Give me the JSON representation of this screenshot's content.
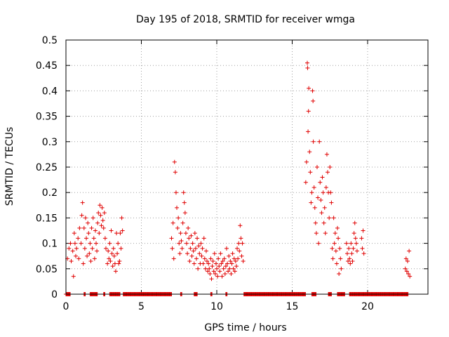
{
  "chart_data": {
    "type": "scatter",
    "title": "Day 195 of 2018, SRMTID for receiver wmga",
    "xlabel": "GPS time / hours",
    "ylabel": "SRMTID / TECUs",
    "xlim": [
      0,
      24
    ],
    "ylim": [
      0,
      0.5
    ],
    "grid": true,
    "marker": "+",
    "marker_color": "#e00000",
    "x_ticks": [
      0,
      5,
      10,
      15,
      20
    ],
    "y_ticks": [
      0,
      0.05,
      0.1,
      0.15,
      0.2,
      0.25,
      0.3,
      0.35,
      0.4,
      0.45,
      0.5
    ],
    "y_tick_labels": [
      "0",
      "0.05",
      "0.1",
      "0.15",
      "0.2",
      "0.25",
      "0.3",
      "0.35",
      "0.4",
      "0.45",
      "0.5"
    ],
    "zero_segments": [
      [
        0.0,
        0.3
      ],
      [
        1.2,
        1.3
      ],
      [
        1.6,
        2.1
      ],
      [
        2.5,
        2.6
      ],
      [
        2.9,
        3.6
      ],
      [
        3.8,
        7.0
      ],
      [
        7.6,
        7.7
      ],
      [
        8.5,
        8.7
      ],
      [
        9.6,
        9.7
      ],
      [
        10.6,
        10.7
      ],
      [
        11.8,
        15.9
      ],
      [
        16.3,
        16.6
      ],
      [
        17.4,
        17.6
      ],
      [
        18.0,
        18.5
      ],
      [
        18.8,
        22.7
      ]
    ],
    "series": [
      {
        "name": "SRMTID",
        "points": [
          [
            0.1,
            0.07
          ],
          [
            0.2,
            0.09
          ],
          [
            0.3,
            0.1
          ],
          [
            0.35,
            0.065
          ],
          [
            0.45,
            0.085
          ],
          [
            0.5,
            0.035
          ],
          [
            0.55,
            0.12
          ],
          [
            0.6,
            0.1
          ],
          [
            0.65,
            0.075
          ],
          [
            0.7,
            0.09
          ],
          [
            0.8,
            0.11
          ],
          [
            0.85,
            0.07
          ],
          [
            0.9,
            0.13
          ],
          [
            1.0,
            0.1
          ],
          [
            1.05,
            0.155
          ],
          [
            1.1,
            0.18
          ],
          [
            1.15,
            0.06
          ],
          [
            1.2,
            0.13
          ],
          [
            1.25,
            0.09
          ],
          [
            1.3,
            0.15
          ],
          [
            1.35,
            0.11
          ],
          [
            1.4,
            0.075
          ],
          [
            1.45,
            0.14
          ],
          [
            1.5,
            0.12
          ],
          [
            1.55,
            0.08
          ],
          [
            1.6,
            0.1
          ],
          [
            1.65,
            0.065
          ],
          [
            1.7,
            0.13
          ],
          [
            1.75,
            0.09
          ],
          [
            1.8,
            0.15
          ],
          [
            1.85,
            0.11
          ],
          [
            1.9,
            0.07
          ],
          [
            1.95,
            0.125
          ],
          [
            2.0,
            0.1
          ],
          [
            2.05,
            0.085
          ],
          [
            2.1,
            0.14
          ],
          [
            2.15,
            0.16
          ],
          [
            2.2,
            0.12
          ],
          [
            2.25,
            0.175
          ],
          [
            2.3,
            0.155
          ],
          [
            2.35,
            0.135
          ],
          [
            2.4,
            0.17
          ],
          [
            2.45,
            0.145
          ],
          [
            2.5,
            0.13
          ],
          [
            2.55,
            0.16
          ],
          [
            2.6,
            0.11
          ],
          [
            2.65,
            0.09
          ],
          [
            2.75,
            0.06
          ],
          [
            2.8,
            0.085
          ],
          [
            2.85,
            0.07
          ],
          [
            2.9,
            0.1
          ],
          [
            2.95,
            0.065
          ],
          [
            3.0,
            0.125
          ],
          [
            3.05,
            0.08
          ],
          [
            3.1,
            0.055
          ],
          [
            3.15,
            0.09
          ],
          [
            3.2,
            0.075
          ],
          [
            3.25,
            0.06
          ],
          [
            3.3,
            0.045
          ],
          [
            3.35,
            0.12
          ],
          [
            3.4,
            0.08
          ],
          [
            3.45,
            0.1
          ],
          [
            3.5,
            0.06
          ],
          [
            3.55,
            0.065
          ],
          [
            3.6,
            0.12
          ],
          [
            3.65,
            0.09
          ],
          [
            3.7,
            0.15
          ],
          [
            3.75,
            0.125
          ],
          [
            7.0,
            0.11
          ],
          [
            7.05,
            0.09
          ],
          [
            7.1,
            0.14
          ],
          [
            7.15,
            0.07
          ],
          [
            7.2,
            0.26
          ],
          [
            7.25,
            0.24
          ],
          [
            7.3,
            0.2
          ],
          [
            7.35,
            0.17
          ],
          [
            7.4,
            0.13
          ],
          [
            7.45,
            0.15
          ],
          [
            7.5,
            0.1
          ],
          [
            7.55,
            0.08
          ],
          [
            7.6,
            0.12
          ],
          [
            7.65,
            0.105
          ],
          [
            7.7,
            0.09
          ],
          [
            7.75,
            0.14
          ],
          [
            7.8,
            0.2
          ],
          [
            7.85,
            0.18
          ],
          [
            7.9,
            0.16
          ],
          [
            7.95,
            0.12
          ],
          [
            8.0,
            0.1
          ],
          [
            8.05,
            0.08
          ],
          [
            8.1,
            0.13
          ],
          [
            8.15,
            0.11
          ],
          [
            8.2,
            0.065
          ],
          [
            8.25,
            0.09
          ],
          [
            8.3,
            0.115
          ],
          [
            8.35,
            0.075
          ],
          [
            8.4,
            0.1
          ],
          [
            8.45,
            0.085
          ],
          [
            8.5,
            0.06
          ],
          [
            8.55,
            0.12
          ],
          [
            8.6,
            0.09
          ],
          [
            8.65,
            0.07
          ],
          [
            8.7,
            0.11
          ],
          [
            8.75,
            0.05
          ],
          [
            8.8,
            0.095
          ],
          [
            8.85,
            0.08
          ],
          [
            8.9,
            0.06
          ],
          [
            8.95,
            0.1
          ],
          [
            9.0,
            0.075
          ],
          [
            9.05,
            0.09
          ],
          [
            9.1,
            0.06
          ],
          [
            9.15,
            0.11
          ],
          [
            9.2,
            0.07
          ],
          [
            9.25,
            0.05
          ],
          [
            9.3,
            0.085
          ],
          [
            9.35,
            0.065
          ],
          [
            9.4,
            0.045
          ],
          [
            9.45,
            0.06
          ],
          [
            9.5,
            0.05
          ],
          [
            9.55,
            0.04
          ],
          [
            9.6,
            0.07
          ],
          [
            9.65,
            0.03
          ],
          [
            9.7,
            0.055
          ],
          [
            9.75,
            0.065
          ],
          [
            9.8,
            0.045
          ],
          [
            9.85,
            0.08
          ],
          [
            9.9,
            0.04
          ],
          [
            9.95,
            0.06
          ],
          [
            10.0,
            0.05
          ],
          [
            10.05,
            0.035
          ],
          [
            10.1,
            0.07
          ],
          [
            10.15,
            0.055
          ],
          [
            10.2,
            0.045
          ],
          [
            10.25,
            0.08
          ],
          [
            10.3,
            0.06
          ],
          [
            10.35,
            0.035
          ],
          [
            10.4,
            0.065
          ],
          [
            10.45,
            0.05
          ],
          [
            10.5,
            0.07
          ],
          [
            10.55,
            0.04
          ],
          [
            10.6,
            0.055
          ],
          [
            10.65,
            0.09
          ],
          [
            10.7,
            0.06
          ],
          [
            10.75,
            0.045
          ],
          [
            10.8,
            0.075
          ],
          [
            10.85,
            0.05
          ],
          [
            10.9,
            0.065
          ],
          [
            10.95,
            0.04
          ],
          [
            11.0,
            0.06
          ],
          [
            11.05,
            0.08
          ],
          [
            11.1,
            0.05
          ],
          [
            11.15,
            0.07
          ],
          [
            11.2,
            0.045
          ],
          [
            11.25,
            0.065
          ],
          [
            11.3,
            0.055
          ],
          [
            11.35,
            0.09
          ],
          [
            11.4,
            0.07
          ],
          [
            11.45,
            0.1
          ],
          [
            11.5,
            0.085
          ],
          [
            11.55,
            0.135
          ],
          [
            11.6,
            0.11
          ],
          [
            11.65,
            0.075
          ],
          [
            11.7,
            0.1
          ],
          [
            11.75,
            0.065
          ],
          [
            15.9,
            0.22
          ],
          [
            15.95,
            0.26
          ],
          [
            16.0,
            0.455
          ],
          [
            16.02,
            0.445
          ],
          [
            16.05,
            0.32
          ],
          [
            16.08,
            0.36
          ],
          [
            16.1,
            0.405
          ],
          [
            16.15,
            0.28
          ],
          [
            16.2,
            0.24
          ],
          [
            16.25,
            0.18
          ],
          [
            16.3,
            0.2
          ],
          [
            16.35,
            0.4
          ],
          [
            16.38,
            0.38
          ],
          [
            16.4,
            0.3
          ],
          [
            16.45,
            0.21
          ],
          [
            16.5,
            0.17
          ],
          [
            16.55,
            0.14
          ],
          [
            16.6,
            0.12
          ],
          [
            16.65,
            0.25
          ],
          [
            16.7,
            0.19
          ],
          [
            16.75,
            0.1
          ],
          [
            16.8,
            0.3
          ],
          [
            16.85,
            0.22
          ],
          [
            16.9,
            0.185
          ],
          [
            16.95,
            0.16
          ],
          [
            17.0,
            0.23
          ],
          [
            17.05,
            0.2
          ],
          [
            17.1,
            0.14
          ],
          [
            17.15,
            0.17
          ],
          [
            17.2,
            0.12
          ],
          [
            17.25,
            0.21
          ],
          [
            17.3,
            0.275
          ],
          [
            17.35,
            0.24
          ],
          [
            17.4,
            0.2
          ],
          [
            17.45,
            0.15
          ],
          [
            17.5,
            0.25
          ],
          [
            17.55,
            0.2
          ],
          [
            17.6,
            0.18
          ],
          [
            17.65,
            0.09
          ],
          [
            17.7,
            0.07
          ],
          [
            17.75,
            0.15
          ],
          [
            17.8,
            0.1
          ],
          [
            17.85,
            0.12
          ],
          [
            17.9,
            0.085
          ],
          [
            17.95,
            0.06
          ],
          [
            18.0,
            0.13
          ],
          [
            18.05,
            0.11
          ],
          [
            18.1,
            0.04
          ],
          [
            18.15,
            0.09
          ],
          [
            18.2,
            0.07
          ],
          [
            18.25,
            0.05
          ],
          [
            18.6,
            0.1
          ],
          [
            18.65,
            0.08
          ],
          [
            18.7,
            0.065
          ],
          [
            18.75,
            0.09
          ],
          [
            18.8,
            0.07
          ],
          [
            18.85,
            0.06
          ],
          [
            18.9,
            0.1
          ],
          [
            18.95,
            0.08
          ],
          [
            19.0,
            0.065
          ],
          [
            19.05,
            0.09
          ],
          [
            19.1,
            0.12
          ],
          [
            19.15,
            0.14
          ],
          [
            19.2,
            0.11
          ],
          [
            19.25,
            0.1
          ],
          [
            19.3,
            0.085
          ],
          [
            19.6,
            0.11
          ],
          [
            19.65,
            0.09
          ],
          [
            19.7,
            0.125
          ],
          [
            19.75,
            0.08
          ],
          [
            22.5,
            0.05
          ],
          [
            22.55,
            0.07
          ],
          [
            22.6,
            0.045
          ],
          [
            22.65,
            0.065
          ],
          [
            22.7,
            0.04
          ],
          [
            22.75,
            0.085
          ],
          [
            22.8,
            0.035
          ]
        ]
      }
    ]
  }
}
